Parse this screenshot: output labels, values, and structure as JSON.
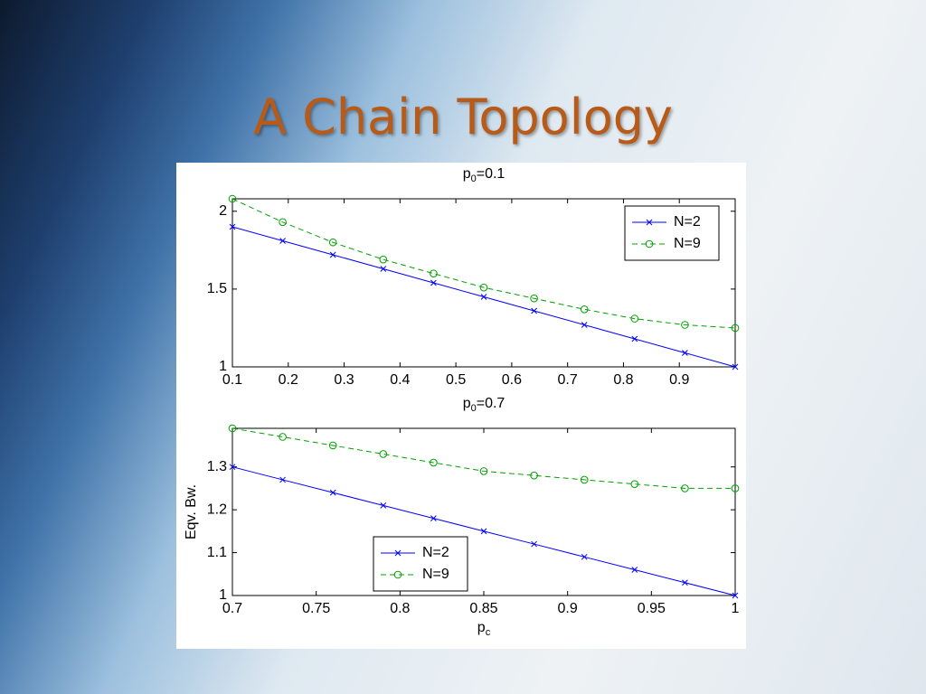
{
  "title": "A Chain Topology",
  "chart_data": [
    {
      "type": "line",
      "title": [
        "p",
        "0",
        "=0.1"
      ],
      "x": [
        0.1,
        0.19,
        0.28,
        0.37,
        0.46,
        0.55,
        0.64,
        0.73,
        0.82,
        0.91,
        1.0
      ],
      "series": [
        {
          "name": "N=2",
          "color": "#0000ff",
          "marker": "x",
          "linestyle": "solid",
          "values": [
            1.9,
            1.81,
            1.72,
            1.63,
            1.54,
            1.45,
            1.36,
            1.27,
            1.18,
            1.09,
            1.0
          ]
        },
        {
          "name": "N=9",
          "color": "#00a000",
          "marker": "o",
          "linestyle": "dashed",
          "values": [
            2.08,
            1.93,
            1.8,
            1.69,
            1.6,
            1.51,
            1.44,
            1.37,
            1.31,
            1.27,
            1.25
          ]
        }
      ],
      "xlim": [
        0.1,
        1.0
      ],
      "xticks": [
        0.1,
        0.2,
        0.3,
        0.4,
        0.5,
        0.6,
        0.7,
        0.8,
        0.9
      ],
      "ylim": [
        1,
        2.08
      ],
      "yticks": [
        1,
        1.5,
        2
      ],
      "legend": "upper-right"
    },
    {
      "type": "line",
      "title": [
        "p",
        "0",
        "=0.7"
      ],
      "xlabel": [
        "p",
        "c"
      ],
      "ylabel": "Eqv. Bw.",
      "x": [
        0.7,
        0.73,
        0.76,
        0.79,
        0.82,
        0.85,
        0.88,
        0.91,
        0.94,
        0.97,
        1.0
      ],
      "series": [
        {
          "name": "N=2",
          "color": "#0000ff",
          "marker": "x",
          "linestyle": "solid",
          "values": [
            1.3,
            1.27,
            1.24,
            1.21,
            1.18,
            1.15,
            1.12,
            1.09,
            1.06,
            1.03,
            1.0
          ]
        },
        {
          "name": "N=9",
          "color": "#00a000",
          "marker": "o",
          "linestyle": "dashed",
          "values": [
            1.39,
            1.37,
            1.35,
            1.33,
            1.31,
            1.29,
            1.28,
            1.27,
            1.26,
            1.25,
            1.25
          ]
        }
      ],
      "xlim": [
        0.7,
        1
      ],
      "xticks": [
        0.7,
        0.75,
        0.8,
        0.85,
        0.9,
        0.95,
        1
      ],
      "ylim": [
        1,
        1.39
      ],
      "yticks": [
        1,
        1.1,
        1.2,
        1.3
      ],
      "legend": "lower-left"
    }
  ]
}
